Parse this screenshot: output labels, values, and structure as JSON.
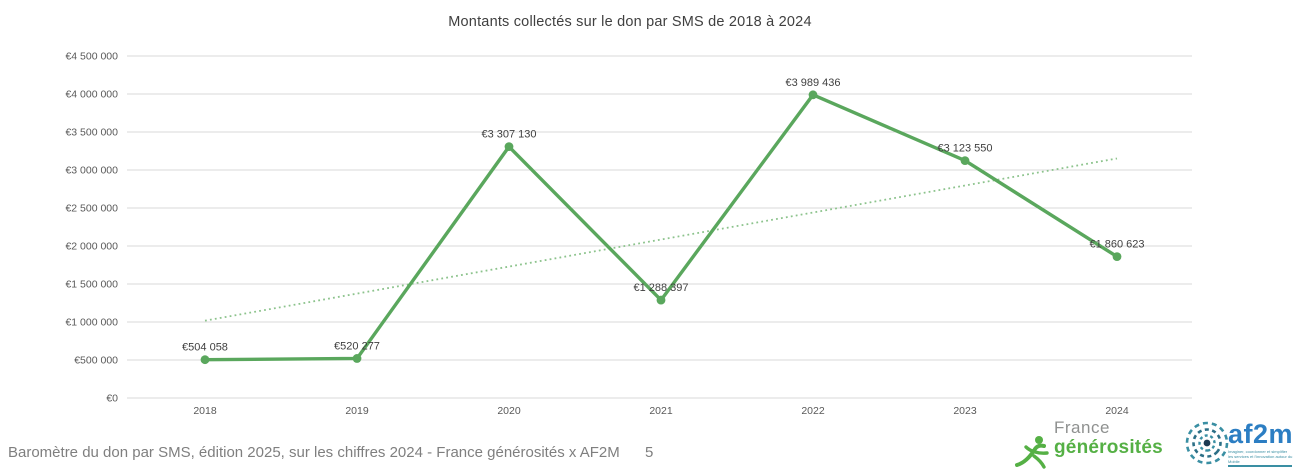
{
  "title": "Montants collectés sur le don par SMS de 2018 à 2024",
  "chart_data": {
    "type": "line",
    "title": "Montants collectés sur le don par SMS de 2018 à 2024",
    "categories": [
      "2018",
      "2019",
      "2020",
      "2021",
      "2022",
      "2023",
      "2024"
    ],
    "values": [
      504058,
      520277,
      3307130,
      1288397,
      3989436,
      3123550,
      1860623
    ],
    "point_labels": [
      "€504 058",
      "€520 277",
      "€3 307 130",
      "€1 288 397",
      "€3 989 436",
      "€3 123 550",
      "€1 860 623"
    ],
    "y_tick_values": [
      0,
      500000,
      1000000,
      1500000,
      2000000,
      2500000,
      3000000,
      3500000,
      4000000,
      4500000
    ],
    "y_tick_labels": [
      "€0",
      "€500 000",
      "€1 000 000",
      "€1 500 000",
      "€2 000 000",
      "€2 500 000",
      "€3 000 000",
      "€3 500 000",
      "€4 000 000",
      "€4 500 000"
    ],
    "ylim": [
      0,
      4500000
    ],
    "xlabel": "",
    "ylabel": "",
    "grid": true,
    "legend": "none",
    "trendline": "linear",
    "series_name": "Montants collectés",
    "series_color": "#5aa75d",
    "trendline_color": "#8cc38c",
    "gridline_color": "#d9d9d9",
    "tick_label_color": "#595959",
    "data_label_color": "#3f3f3f"
  },
  "footer": {
    "caption": "Baromètre du don par SMS, édition 2025, sur les chiffres 2024 - France générosités x AF2M",
    "page_number": "5"
  },
  "logos": {
    "france_generosites": {
      "line1": "France",
      "line2": "générosités",
      "green": "#55b045",
      "gray": "#8f9190"
    },
    "af2m": {
      "name": "af2m",
      "tagline_line1": "Imaginer, coordonner et simplifier",
      "tagline_line2": "les services et l'innovation autour du Mobile",
      "blue": "#2c7ec3",
      "teal": "#3a8fa3"
    }
  }
}
